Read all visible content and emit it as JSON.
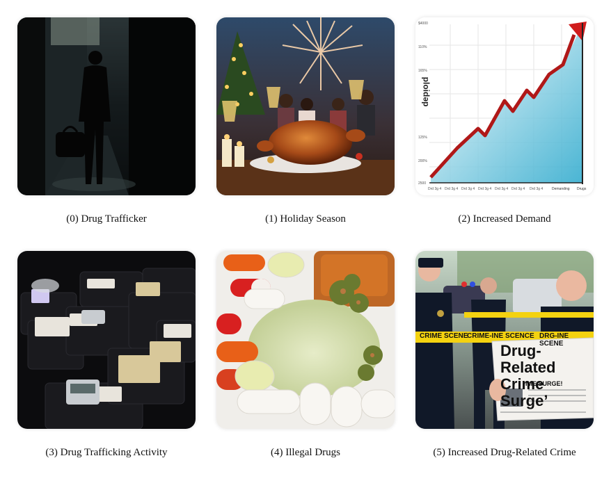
{
  "panels": [
    {
      "caption": "(0) Drug Trafficker",
      "icon": "silhouette-alley"
    },
    {
      "caption": "(1) Holiday Season",
      "icon": "holiday-feast"
    },
    {
      "caption": "(2) Increased Demand",
      "icon": "rising-chart",
      "chart": {
        "axis_text": "ploidəp",
        "y_ticks": [
          "$4000",
          "110%",
          "165%",
          "125%",
          "200%",
          "2500"
        ],
        "x_ticks": [
          "Drd 3g 4",
          "Drd 3g 4",
          "Drd 3g 4",
          "Drd 3g 4",
          "Drd 3g 4",
          "Drd 3g 4",
          "Drd 3g 4",
          "Demanding",
          "Drugs"
        ]
      }
    },
    {
      "caption": "(3) Drug Trafficking Activity",
      "icon": "bags-of-drugs"
    },
    {
      "caption": "(4) Illegal Drugs",
      "icon": "pills-powder"
    },
    {
      "caption": "(5) Increased Drug-Related Crime",
      "icon": "police-newspaper",
      "tape_text": "CRIME SCENE",
      "tape_text_2": "CRIME-INE SCENCE",
      "tape_text_3": "DRG-INE SCENE",
      "headline": "Drug-Related Crime Surge’",
      "subhead": "IME SURGE!"
    }
  ]
}
